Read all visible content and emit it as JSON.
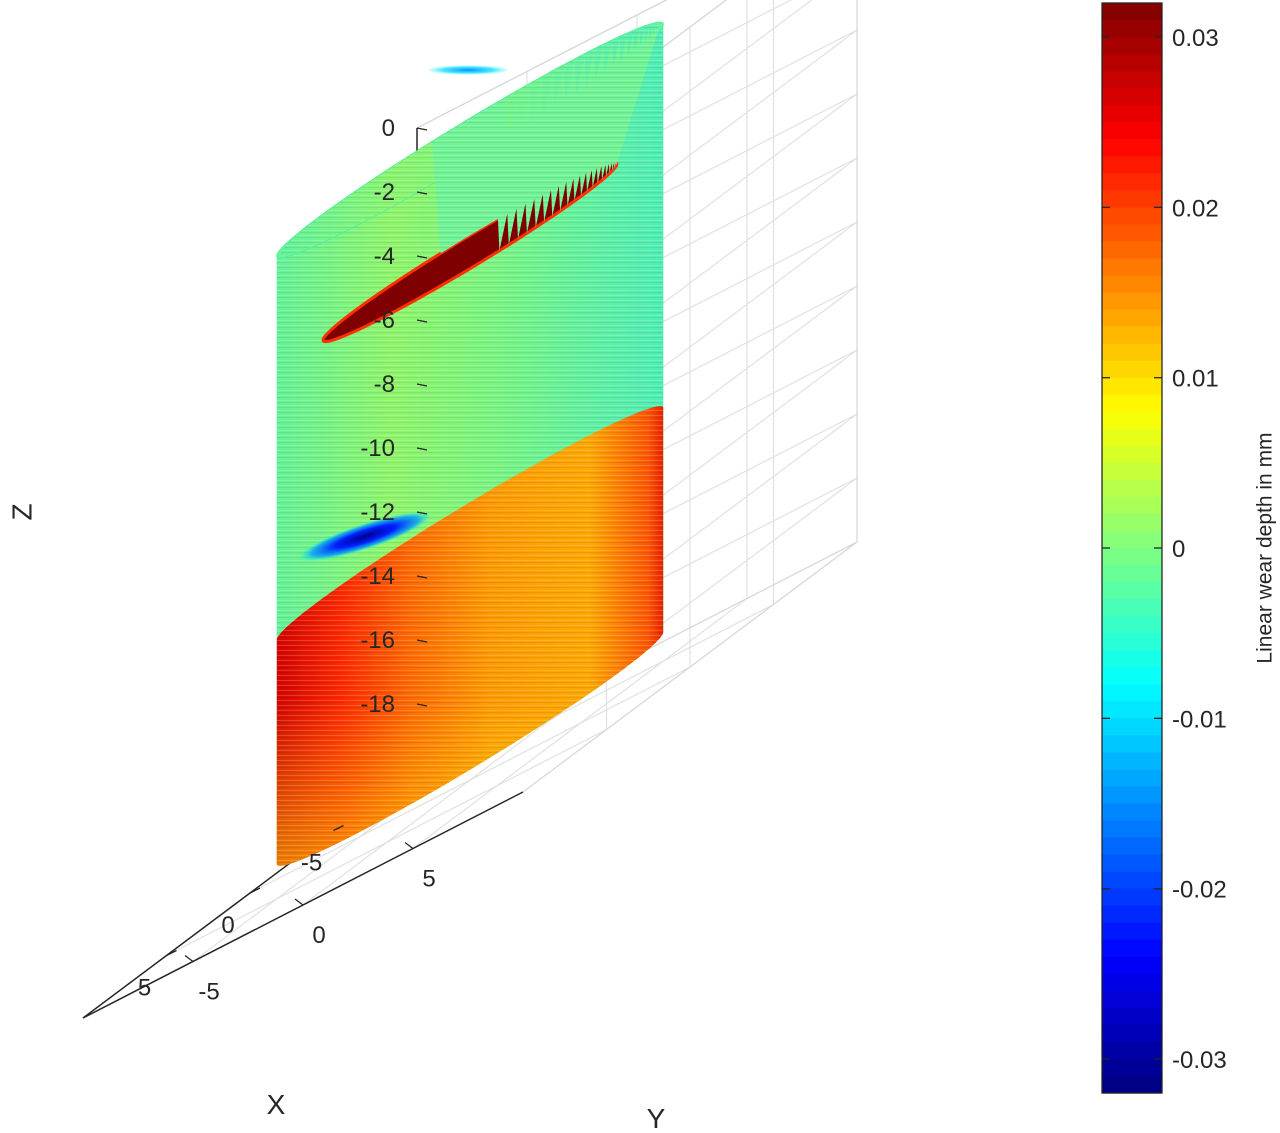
{
  "chart_data": {
    "type": "surface3d",
    "title": "",
    "axes": {
      "x": {
        "label": "X",
        "ticks": [
          -5,
          0,
          5
        ],
        "tick_labels": [
          "-5",
          "0",
          "5"
        ],
        "lim": [
          -10,
          10
        ]
      },
      "y": {
        "label": "Y",
        "ticks": [
          -5,
          0,
          5
        ],
        "tick_labels": [
          "-5",
          "0",
          "5"
        ],
        "lim": [
          -10,
          10
        ]
      },
      "z": {
        "label": "Z",
        "ticks": [
          0,
          -2,
          -4,
          -6,
          -8,
          -10,
          -12,
          -14,
          -16,
          -18
        ],
        "tick_labels": [
          "0",
          "-2",
          "-4",
          "-6",
          "-8",
          "-10",
          "-12",
          "-14",
          "-16",
          "-18"
        ],
        "lim": [
          -20,
          0
        ]
      }
    },
    "grid": true,
    "surface": {
      "shape": "cylinder",
      "radius": 7,
      "z_range": [
        -19,
        0
      ],
      "bands": [
        {
          "z_range": [
            -12,
            0
          ],
          "wear_depth": 0.0
        },
        {
          "z_range": [
            -19,
            -12
          ],
          "wear_depth": 0.017
        }
      ],
      "inner_bottom": {
        "z": -3.5,
        "wear_depth": 0.032
      },
      "hotspots": [
        {
          "angle_deg": 250,
          "z": -11,
          "wear_depth": -0.03
        },
        {
          "angle_deg": 200,
          "z": -2,
          "wear_depth": -0.012
        }
      ]
    },
    "colorbar": {
      "label": "Linear wear depth in mm",
      "colormap": "jet",
      "lim": [
        -0.032,
        0.032
      ],
      "ticks": [
        0.03,
        0.02,
        0.01,
        0,
        -0.01,
        -0.02,
        -0.03
      ],
      "tick_labels": [
        "0.03",
        "0.02",
        "0.01",
        "0",
        "-0.01",
        "-0.02",
        "-0.03"
      ]
    }
  }
}
